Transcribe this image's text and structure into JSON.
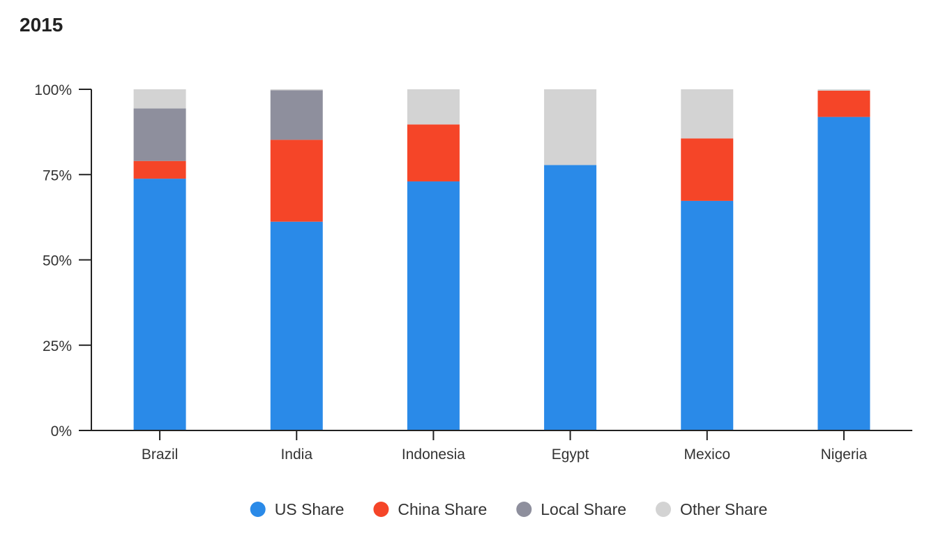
{
  "chart_data": {
    "type": "bar",
    "stacked": true,
    "title": "2015",
    "xlabel": "",
    "ylabel": "",
    "ylim": [
      0,
      100
    ],
    "yticks": [
      "0%",
      "25%",
      "50%",
      "75%",
      "100%"
    ],
    "ytick_values": [
      0,
      25,
      50,
      75,
      100
    ],
    "categories": [
      "Brazil",
      "India",
      "Indonesia",
      "Egypt",
      "Mexico",
      "Nigeria"
    ],
    "series": [
      {
        "name": "US Share",
        "color": "#2a8ae8",
        "values": [
          73.8,
          61.2,
          73.0,
          77.8,
          67.3,
          91.9
        ]
      },
      {
        "name": "China Share",
        "color": "#f54528",
        "values": [
          5.2,
          24.0,
          16.7,
          0.0,
          18.3,
          7.7
        ]
      },
      {
        "name": "Local Share",
        "color": "#8e8f9d",
        "values": [
          15.4,
          14.5,
          0.0,
          0.0,
          0.0,
          0.0
        ]
      },
      {
        "name": "Other Share",
        "color": "#d3d3d3",
        "values": [
          5.6,
          0.3,
          10.3,
          22.2,
          14.4,
          0.4
        ]
      }
    ],
    "legend_position": "bottom-center",
    "grid": false
  }
}
